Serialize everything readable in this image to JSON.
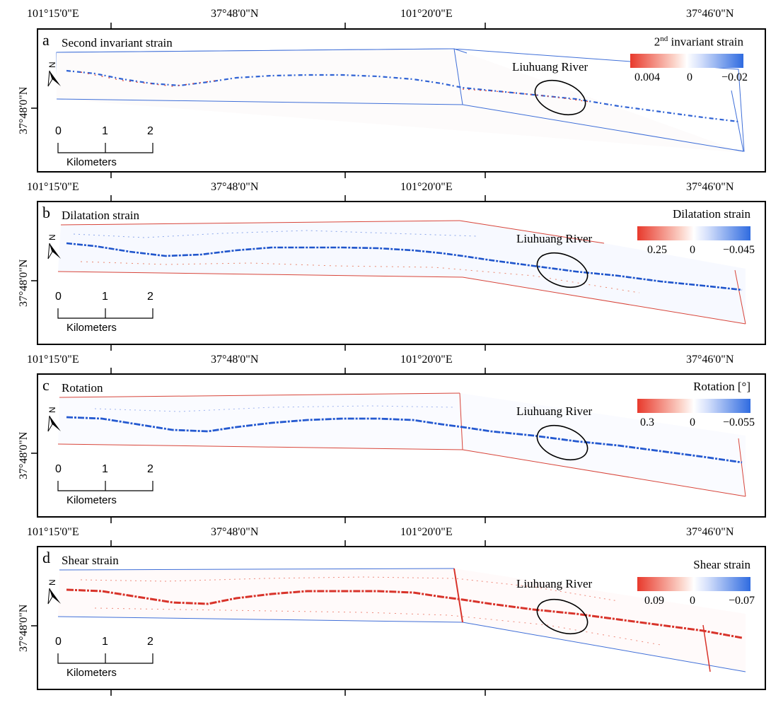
{
  "coord_labels": {
    "lon_left": "101°15'0\"E",
    "lat_mid": "37°48'0\"N",
    "lon_right": "101°20'0\"E",
    "lat_right": "37°46'0\"N",
    "lat_side": "37°48'0\"N"
  },
  "panels": [
    {
      "letter": "a",
      "title": "Second invariant strain",
      "legend_title": "2nd invariant strain",
      "legend_sup": "nd",
      "legend_pre": "2",
      "legend_post": " invariant strain",
      "val_left": "0.004",
      "val_mid": "0",
      "val_right": "−0.02",
      "river": "Liuhuang River",
      "trace_color": "#2f62d4",
      "border_color": "#3f6fd8"
    },
    {
      "letter": "b",
      "title": "Dilatation strain",
      "legend_title": "Dilatation strain",
      "val_left": "0.25",
      "val_mid": "0",
      "val_right": "−0.045",
      "river": "Liuhuang River",
      "trace_color": "#1f55cc",
      "border_color": "#d8453a"
    },
    {
      "letter": "c",
      "title": "Rotation",
      "legend_title": "Rotation [°]",
      "val_left": "0.3",
      "val_mid": "0",
      "val_right": "−0.055",
      "river": "Liuhuang River",
      "trace_color": "#2459d0",
      "border_color": "#d8453a"
    },
    {
      "letter": "d",
      "title": "Shear strain",
      "legend_title": "Shear strain",
      "val_left": "0.09",
      "val_mid": "0",
      "val_right": "−0.07",
      "river": "Liuhuang River",
      "trace_color": "#d8332a",
      "border_color": "#3f6fd8"
    }
  ],
  "scale": {
    "ticks": [
      "0",
      "1",
      "2"
    ],
    "unit": "Kilometers"
  },
  "north_icon": "north-arrow-icon"
}
